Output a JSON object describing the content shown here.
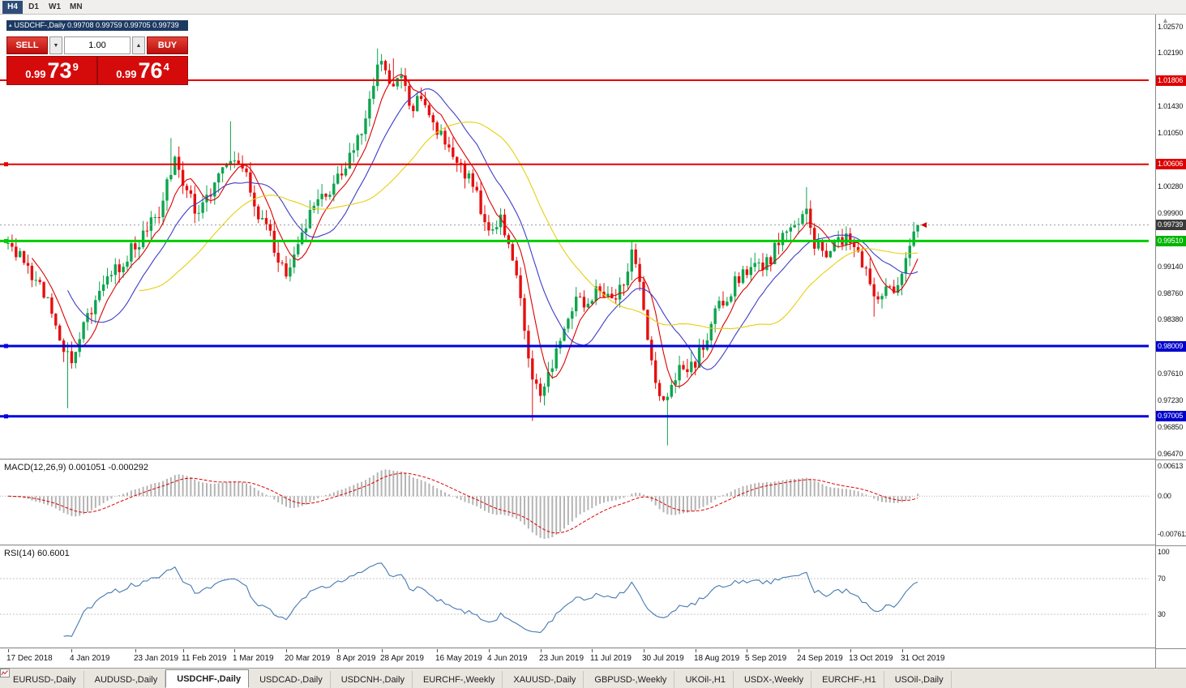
{
  "window": {
    "timeframes": [
      "H4",
      "D1",
      "W1",
      "MN"
    ],
    "active_timeframe": "H4"
  },
  "chart": {
    "title": "USDCHF-,Daily 0.99708 0.99759 0.99705 0.99739",
    "symbol": "USDCHF-,Daily"
  },
  "icons": {
    "collapse": "▴",
    "step_up": "▲",
    "step_down": "▼",
    "scale_arrow": "▲"
  },
  "trade_panel": {
    "sell_label": "SELL",
    "buy_label": "BUY",
    "volume": "1.00",
    "sell_price": {
      "big": "0.99",
      "pips": "73",
      "pt": "9",
      "full": "0.99739"
    },
    "buy_price": {
      "big": "0.99",
      "pips": "76",
      "pt": "4",
      "full": "0.99764"
    }
  },
  "price_scale": {
    "ticks": [
      1.0257,
      1.0219,
      1.0143,
      1.0105,
      1.0028,
      0.999,
      0.9914,
      0.9876,
      0.9838,
      0.9761,
      0.9723,
      0.9685,
      0.9647
    ],
    "badges": [
      {
        "value": "1.01806",
        "level": 1.01806,
        "color": "#dd0000"
      },
      {
        "value": "1.00606",
        "level": 1.00606,
        "color": "#dd0000"
      },
      {
        "value": "0.99739",
        "level": 0.99739,
        "color": "#3a3a3a"
      },
      {
        "value": "0.99510",
        "level": 0.9951,
        "color": "#00b400"
      },
      {
        "value": "0.98009",
        "level": 0.98009,
        "color": "#0000cc"
      },
      {
        "value": "0.97005",
        "level": 0.97005,
        "color": "#0000cc"
      }
    ]
  },
  "hlines": [
    {
      "level": 1.01806,
      "color": "#e60000",
      "width": 2,
      "handle": false
    },
    {
      "level": 1.00606,
      "color": "#e60000",
      "width": 2,
      "handle": true
    },
    {
      "level": 0.9951,
      "color": "#00cc00",
      "width": 3,
      "handle": true
    },
    {
      "level": 0.98009,
      "color": "#0000dd",
      "width": 3,
      "handle": true
    },
    {
      "level": 0.97005,
      "color": "#0000dd",
      "width": 3,
      "handle": true
    }
  ],
  "macd": {
    "label": "MACD(12,26,9) 0.001051 -0.000292",
    "scale": [
      "0.00613",
      "0.00",
      "-0.007612"
    ],
    "params": [
      12,
      26,
      9
    ]
  },
  "rsi": {
    "label": "RSI(14) 60.6001",
    "scale": [
      "100",
      "70",
      "30"
    ],
    "levels": [
      70,
      30
    ],
    "period": 14,
    "value": 60.6001
  },
  "tabs": [
    {
      "label": "EURUSD-,Daily"
    },
    {
      "label": "AUDUSD-,Daily"
    },
    {
      "label": "USDCHF-,Daily",
      "active": true
    },
    {
      "label": "USDCAD-,Daily"
    },
    {
      "label": "USDCNH-,Daily"
    },
    {
      "label": "EURCHF-,Weekly"
    },
    {
      "label": "XAUUSD-,Daily"
    },
    {
      "label": "GBPUSD-,Weekly"
    },
    {
      "label": "UKOil-,H1"
    },
    {
      "label": "USDX-,Weekly"
    },
    {
      "label": "EURCHF-,H1"
    },
    {
      "label": "USOil-,Daily"
    }
  ],
  "chart_data": {
    "type": "candlestick",
    "symbol": "USDCHF",
    "timeframe": "Daily",
    "current_ohlc": {
      "open": 0.99708,
      "high": 0.99759,
      "low": 0.99705,
      "close": 0.99739
    },
    "bid": 0.99739,
    "ask": 0.99764,
    "price_range": [
      0.9647,
      1.0257
    ],
    "num_candles": 230,
    "last_close": 0.99739,
    "ma_periods": {
      "red": 7,
      "blue": 16,
      "yellow": 34
    },
    "anchors": [
      [
        0,
        0.9948
      ],
      [
        3,
        0.9925
      ],
      [
        6,
        0.9898
      ],
      [
        9,
        0.9872
      ],
      [
        12,
        0.984
      ],
      [
        14,
        0.98
      ],
      [
        16,
        0.9788
      ],
      [
        18,
        0.982
      ],
      [
        21,
        0.9858
      ],
      [
        24,
        0.989
      ],
      [
        28,
        0.9915
      ],
      [
        32,
        0.9945
      ],
      [
        35,
        0.9968
      ],
      [
        38,
        0.999
      ],
      [
        40,
        1.004
      ],
      [
        42,
        1.007
      ],
      [
        44,
        1.004
      ],
      [
        46,
        1.001
      ],
      [
        48,
        0.999
      ],
      [
        50,
        1.0015
      ],
      [
        53,
        1.0045
      ],
      [
        56,
        1.0075
      ],
      [
        58,
        1.005
      ],
      [
        60,
        1.004
      ],
      [
        62,
        1.0005
      ],
      [
        64,
        0.998
      ],
      [
        66,
        0.9955
      ],
      [
        68,
        0.9925
      ],
      [
        70,
        0.99
      ],
      [
        72,
        0.993
      ],
      [
        74,
        0.9955
      ],
      [
        76,
        0.9985
      ],
      [
        78,
        1.0005
      ],
      [
        80,
        1.0018
      ],
      [
        82,
        1.0035
      ],
      [
        84,
        1.005
      ],
      [
        86,
        1.0065
      ],
      [
        88,
        1.009
      ],
      [
        90,
        1.013
      ],
      [
        92,
        1.0175
      ],
      [
        94,
        1.0208
      ],
      [
        96,
        1.0165
      ],
      [
        99,
        1.0195
      ],
      [
        101,
        1.014
      ],
      [
        104,
        1.0165
      ],
      [
        107,
        1.012
      ],
      [
        110,
        1.0095
      ],
      [
        113,
        1.007
      ],
      [
        116,
        1.004
      ],
      [
        119,
        1.0
      ],
      [
        122,
        0.9965
      ],
      [
        124,
        0.9985
      ],
      [
        126,
        0.994
      ],
      [
        128,
        0.9895
      ],
      [
        130,
        0.982
      ],
      [
        132,
        0.975
      ],
      [
        134,
        0.973
      ],
      [
        136,
        0.9762
      ],
      [
        138,
        0.9795
      ],
      [
        140,
        0.9835
      ],
      [
        143,
        0.9875
      ],
      [
        146,
        0.9858
      ],
      [
        149,
        0.9888
      ],
      [
        152,
        0.9868
      ],
      [
        155,
        0.9898
      ],
      [
        157,
        0.993
      ],
      [
        159,
        0.9885
      ],
      [
        161,
        0.982
      ],
      [
        163,
        0.9755
      ],
      [
        165,
        0.9718
      ],
      [
        167,
        0.9742
      ],
      [
        169,
        0.9772
      ],
      [
        171,
        0.9756
      ],
      [
        173,
        0.978
      ],
      [
        176,
        0.9818
      ],
      [
        179,
        0.9856
      ],
      [
        182,
        0.9882
      ],
      [
        185,
        0.9902
      ],
      [
        188,
        0.9928
      ],
      [
        190,
        0.9906
      ],
      [
        193,
        0.9938
      ],
      [
        196,
        0.9962
      ],
      [
        199,
        0.9986
      ],
      [
        201,
        1.0002
      ],
      [
        203,
        0.9948
      ],
      [
        206,
        0.9926
      ],
      [
        209,
        0.9952
      ],
      [
        211,
        0.9962
      ],
      [
        214,
        0.9932
      ],
      [
        217,
        0.9886
      ],
      [
        219,
        0.9856
      ],
      [
        221,
        0.9892
      ],
      [
        223,
        0.9872
      ],
      [
        225,
        0.9904
      ],
      [
        227,
        0.994
      ],
      [
        229,
        0.99739
      ]
    ],
    "spikes": [
      {
        "i": 15,
        "low": 0.9712
      },
      {
        "i": 41,
        "high": 1.0098
      },
      {
        "i": 56,
        "high": 1.0122
      },
      {
        "i": 93,
        "high": 1.0226
      },
      {
        "i": 97,
        "high": 1.0212
      },
      {
        "i": 132,
        "low": 0.9694
      },
      {
        "i": 166,
        "low": 0.9659
      },
      {
        "i": 201,
        "high": 1.0028
      },
      {
        "i": 218,
        "low": 0.9843
      }
    ],
    "x_labels": [
      "17 Dec 2018",
      "4 Jan 2019",
      "23 Jan 2019",
      "11 Feb 2019",
      "1 Mar 2019",
      "20 Mar 2019",
      "8 Apr 2019",
      "28 Apr 2019",
      "16 May 2019",
      "4 Jun 2019",
      "23 Jun 2019",
      "11 Jul 2019",
      "30 Jul 2019",
      "18 Aug 2019",
      "5 Sep 2019",
      "24 Sep 2019",
      "13 Oct 2019",
      "31 Oct 2019"
    ],
    "x_label_indices": [
      0,
      16,
      32,
      44,
      57,
      70,
      83,
      94,
      108,
      121,
      134,
      147,
      160,
      173,
      186,
      199,
      212,
      225
    ]
  }
}
